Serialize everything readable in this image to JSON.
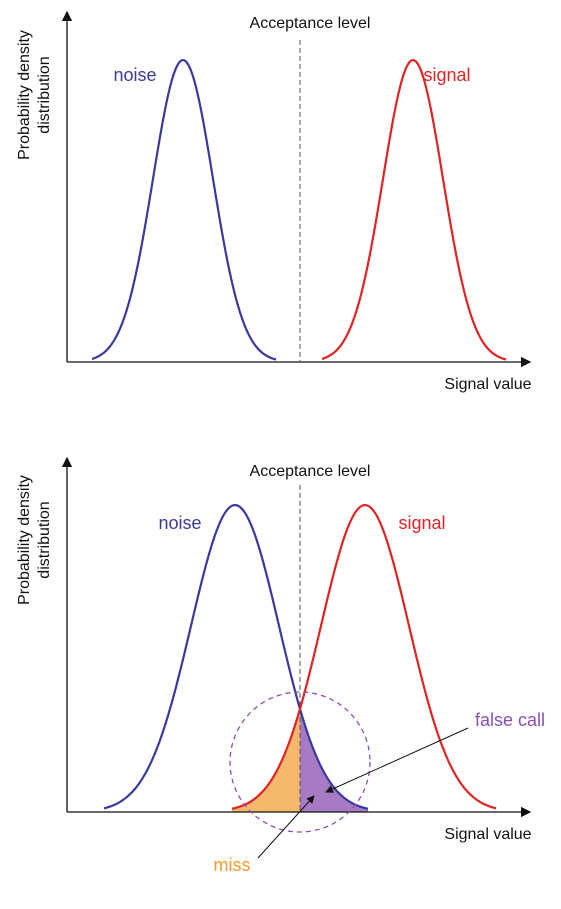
{
  "panels": [
    {
      "title": "Acceptance level",
      "y_axis_label": [
        "Probability density",
        "distribution"
      ],
      "x_axis_label": "Signal value",
      "curves": [
        {
          "label": "noise",
          "color": "#3a3a9c"
        },
        {
          "label": "signal",
          "color": "#e02424"
        }
      ]
    },
    {
      "title": "Acceptance level",
      "y_axis_label": [
        "Probability density",
        "distribution"
      ],
      "x_axis_label": "Signal value",
      "curves": [
        {
          "label": "noise",
          "color": "#3a3a9c"
        },
        {
          "label": "signal",
          "color": "#e02424"
        }
      ],
      "regions": [
        {
          "label": "false call",
          "color": "#8a4fb0"
        },
        {
          "label": "miss",
          "color": "#f29a2e"
        }
      ]
    }
  ]
}
